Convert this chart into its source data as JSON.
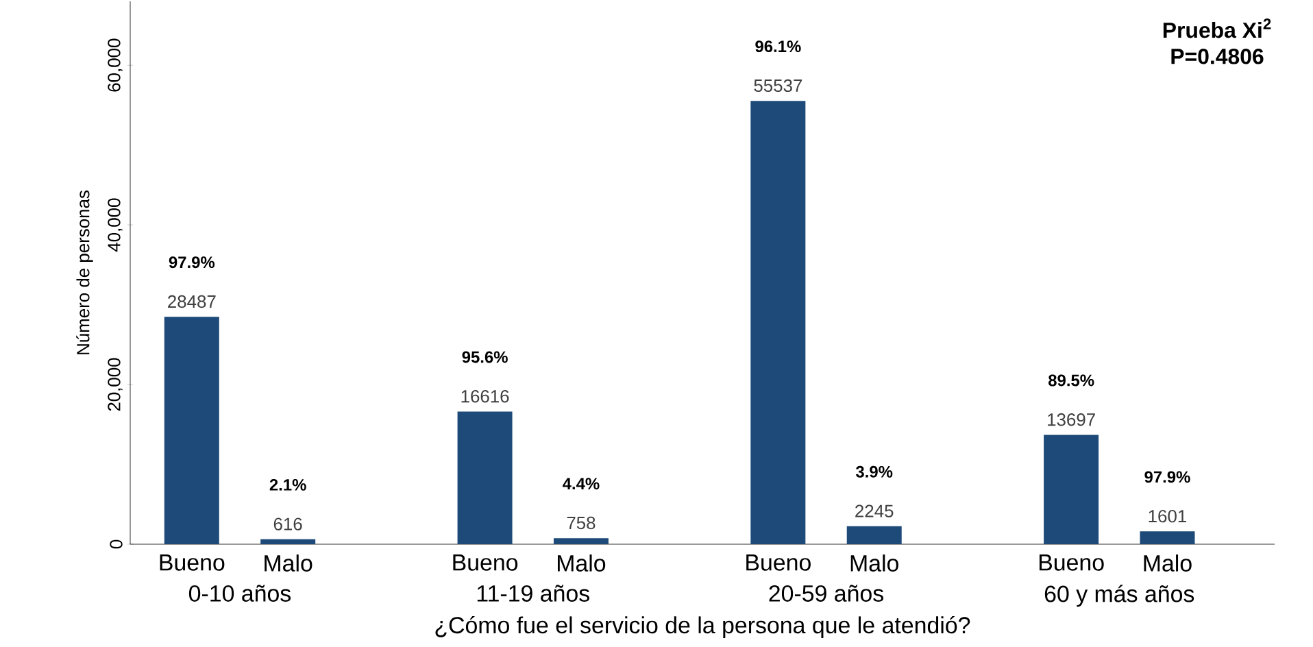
{
  "chart_data": {
    "type": "bar",
    "categories": [
      "0-10 años",
      "11-19 años",
      "20-59 años",
      "60 y más años"
    ],
    "series": [
      {
        "name": "Bueno",
        "color": "#1d4a78",
        "values": [
          28487,
          16616,
          55537,
          13697
        ]
      },
      {
        "name": "Malo",
        "color": "#1d4a78",
        "values": [
          616,
          758,
          2245,
          1601
        ]
      }
    ],
    "data_labels": true,
    "xlabel": "¿Cómo fue el servicio de la persona que le atendió?",
    "ylabel": "Número de personas",
    "ylim": [
      0,
      68000
    ],
    "yticks": [
      0,
      {
        "value": 20000,
        "label": "20,000"
      },
      {
        "value": 40000,
        "label": "40,000"
      },
      {
        "value": 60000,
        "label": "60,000"
      }
    ],
    "annotations": [
      "97.9%",
      "2.1%",
      "95.6%",
      "4.4%",
      "96.1%",
      "3.9%",
      "89.5%",
      "97.9%",
      "Prueba Xi$^{2}$",
      "P=0.4806"
    ],
    "grid": false
  }
}
